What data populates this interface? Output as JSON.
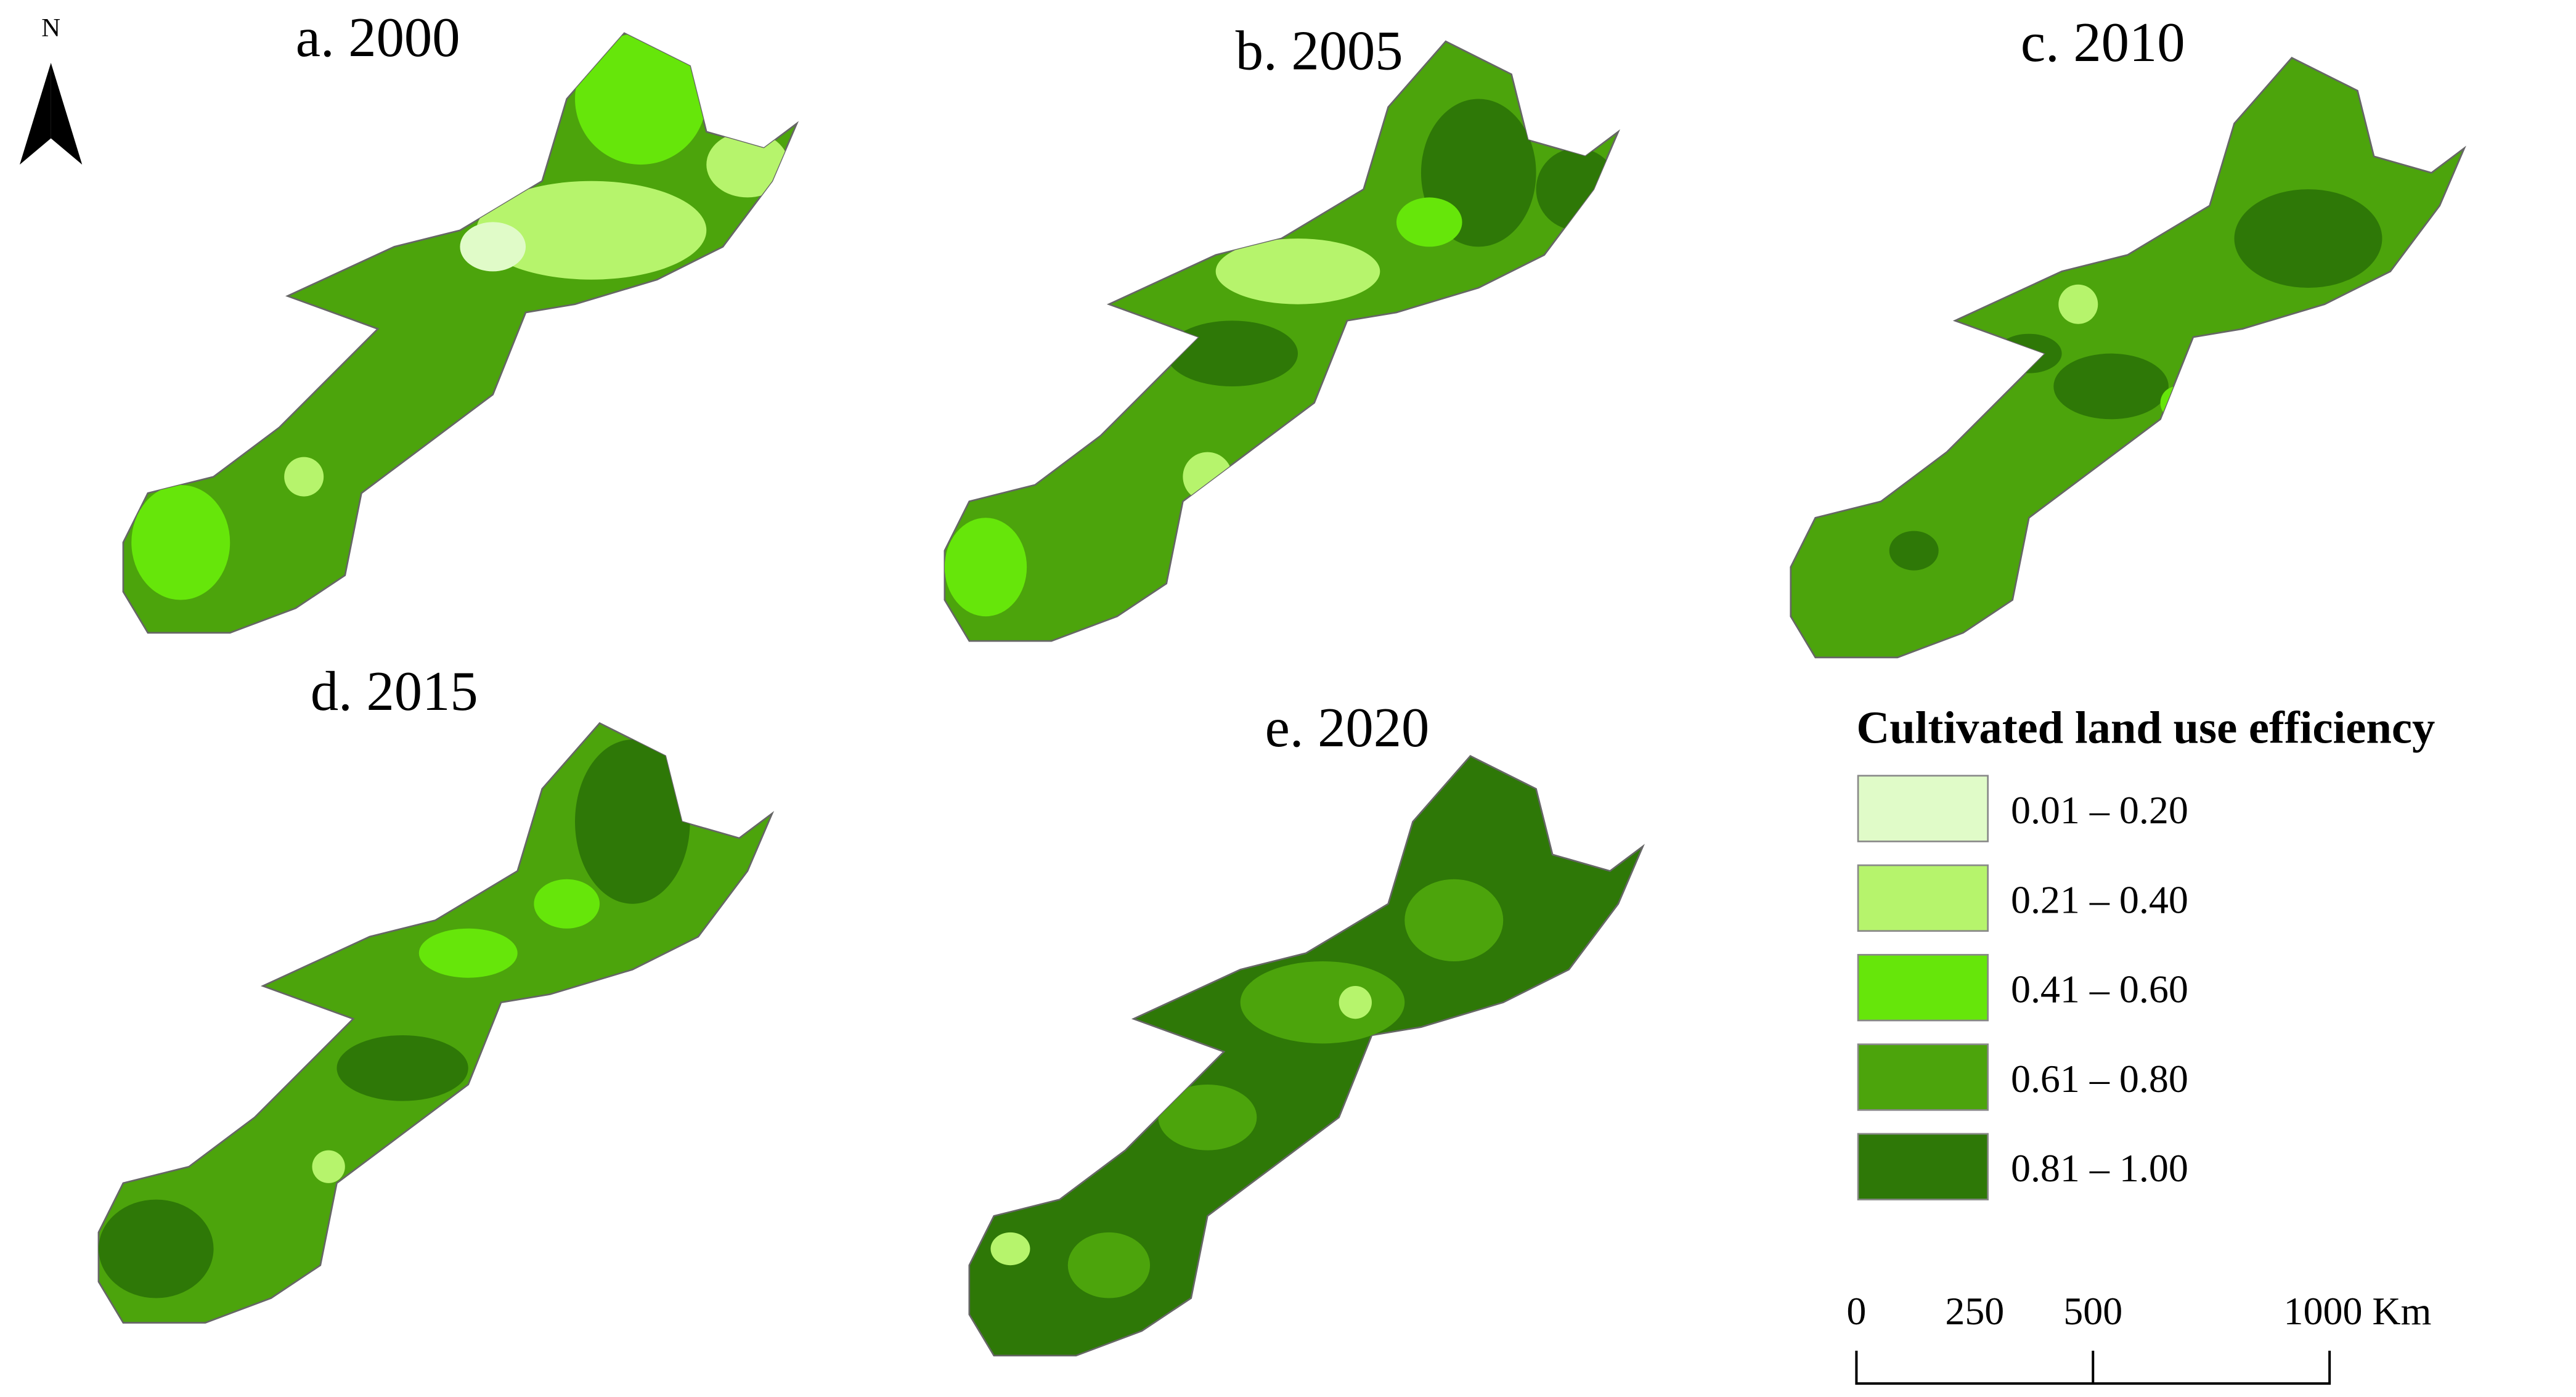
{
  "north_label": "N",
  "maps": [
    {
      "title": "a. 2000"
    },
    {
      "title": "b. 2005"
    },
    {
      "title": "c. 2010"
    },
    {
      "title": "d. 2015"
    },
    {
      "title": "e. 2020"
    }
  ],
  "legend": {
    "title": "Cultivated land use efficiency",
    "items": [
      {
        "label": "0.01 –  0.20",
        "color": "#e0fbc8"
      },
      {
        "label": "0.21 –  0.40",
        "color": "#b6f46c"
      },
      {
        "label": "0.41 –  0.60",
        "color": "#66e60a"
      },
      {
        "label": "0.61 –  0.80",
        "color": "#4ca40c"
      },
      {
        "label": "0.81 –  1.00",
        "color": "#2e7807"
      }
    ]
  },
  "scale_bar": {
    "labels": [
      "0",
      "250",
      "500",
      "1000 Km"
    ]
  }
}
